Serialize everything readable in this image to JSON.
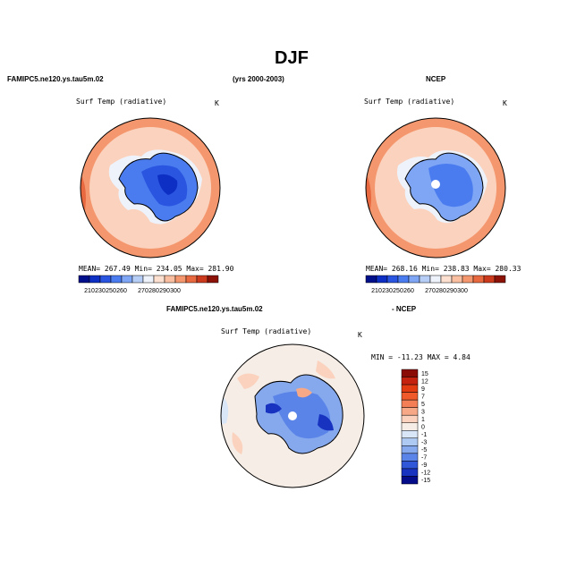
{
  "figure": {
    "title": "DJF",
    "model_name": "FAMIPC5.ne120.ys.tau5m.02",
    "years": "(yrs 2000-2003)",
    "obs_name": "NCEP",
    "diff_model": "FAMIPC5.ne120.ys.tau5m.02",
    "diff_obs": "- NCEP"
  },
  "panels": {
    "model": {
      "variable": "Surf Temp (radiative)",
      "units": "K",
      "stats": "MEAN= 267.49   Min= 234.05   Max= 281.90"
    },
    "obs": {
      "variable": "Surf Temp (radiative)",
      "units": "K",
      "stats": "MEAN= 268.16   Min= 238.83   Max= 280.33"
    },
    "diff": {
      "variable": "Surf Temp (radiative)",
      "units": "K",
      "stats": "MIN = -11.23  MAX =   4.84"
    }
  },
  "colorbar_abs": {
    "colors": [
      "#000f8a",
      "#0d2fc4",
      "#2a55e0",
      "#4a7cf0",
      "#7ea6f5",
      "#b6cdf5",
      "#eef3fb",
      "#fde0cf",
      "#f9bfa0",
      "#f4976e",
      "#e8683f",
      "#cc3a1e",
      "#8c1208"
    ],
    "labels": [
      "210",
      "230",
      "250",
      "260",
      "270",
      "280",
      "290",
      "300"
    ],
    "label_ticks": [
      1,
      2,
      3,
      4,
      6,
      7,
      8,
      9
    ]
  },
  "colorbar_diff": {
    "colors": [
      "#8a0a05",
      "#c4220e",
      "#e23b12",
      "#f05a2a",
      "#f47e55",
      "#f7a987",
      "#fbd2bd",
      "#f6ede6",
      "#d9e6f7",
      "#aec9f2",
      "#86a9ee",
      "#5a84e8",
      "#3057d8",
      "#1733c0",
      "#050c8a"
    ],
    "labels": [
      "15",
      "12",
      "9",
      "7",
      "5",
      "3",
      "1",
      "0",
      "-1",
      "-3",
      "-5",
      "-7",
      "-9",
      "-12",
      "-15"
    ]
  }
}
